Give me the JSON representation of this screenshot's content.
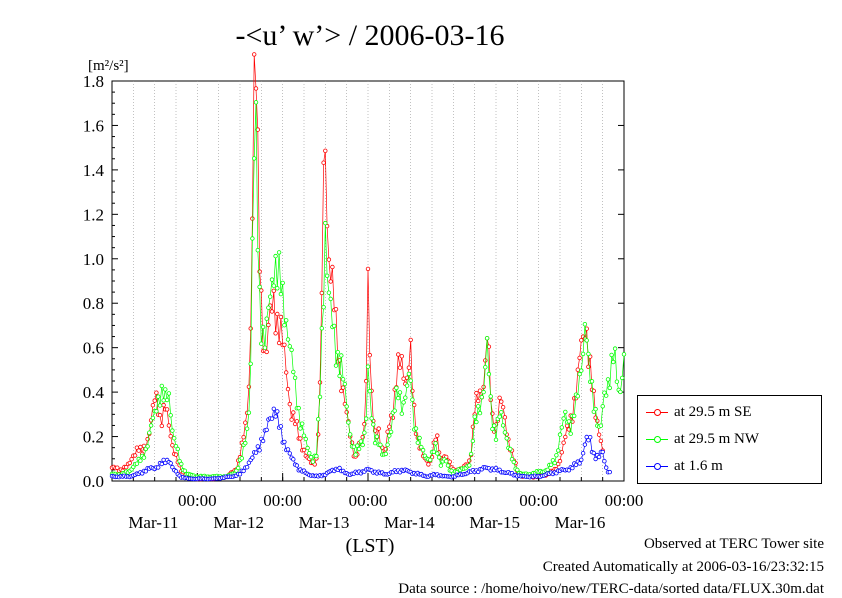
{
  "chart_data": {
    "type": "line",
    "title": "-<u’ w’> / 2006-03-16",
    "ylabel": "[m²/s²]",
    "xlabel": "(LST)",
    "ylim": [
      0,
      1.8
    ],
    "yticks": [
      "0.0",
      "0.2",
      "0.4",
      "0.6",
      "0.8",
      "1.0",
      "1.2",
      "1.4",
      "1.6",
      "1.8"
    ],
    "xlim_days": [
      0,
      6
    ],
    "xtick_time_label": "00:00",
    "xticks": [
      {
        "time": "00:00",
        "date": "Mar-11"
      },
      {
        "time": "00:00",
        "date": "Mar-12"
      },
      {
        "time": "00:00",
        "date": "Mar-13"
      },
      {
        "time": "00:00",
        "date": "Mar-14"
      },
      {
        "time": "00:00",
        "date": "Mar-15"
      },
      {
        "time": "00:00",
        "date": "Mar-16"
      }
    ],
    "grid": true,
    "legend_position": "right",
    "series": [
      {
        "name": "at 29.5 m SE",
        "color": "#ff0000",
        "keypoints": [
          [
            0.0,
            0.06
          ],
          [
            0.1,
            0.05
          ],
          [
            0.2,
            0.07
          ],
          [
            0.25,
            0.12
          ],
          [
            0.3,
            0.15
          ],
          [
            0.35,
            0.12
          ],
          [
            0.4,
            0.17
          ],
          [
            0.45,
            0.25
          ],
          [
            0.5,
            0.35
          ],
          [
            0.53,
            0.37
          ],
          [
            0.57,
            0.28
          ],
          [
            0.62,
            0.33
          ],
          [
            0.67,
            0.24
          ],
          [
            0.72,
            0.15
          ],
          [
            0.8,
            0.05
          ],
          [
            0.88,
            0.02
          ],
          [
            1.0,
            0.01
          ],
          [
            1.2,
            0.01
          ],
          [
            1.35,
            0.02
          ],
          [
            1.45,
            0.05
          ],
          [
            1.52,
            0.15
          ],
          [
            1.57,
            0.25
          ],
          [
            1.6,
            0.4
          ],
          [
            1.63,
            0.8
          ],
          [
            1.66,
            1.74
          ],
          [
            1.69,
            1.76
          ],
          [
            1.72,
            1.1
          ],
          [
            1.76,
            0.75
          ],
          [
            1.8,
            0.55
          ],
          [
            1.85,
            0.7
          ],
          [
            1.9,
            0.85
          ],
          [
            1.95,
            0.7
          ],
          [
            2.0,
            0.6
          ],
          [
            2.05,
            0.5
          ],
          [
            2.1,
            0.3
          ],
          [
            2.15,
            0.25
          ],
          [
            2.2,
            0.2
          ],
          [
            2.28,
            0.1
          ],
          [
            2.35,
            0.08
          ],
          [
            2.4,
            0.1
          ],
          [
            2.44,
            0.4
          ],
          [
            2.48,
            1.35
          ],
          [
            2.5,
            1.61
          ],
          [
            2.53,
            1.1
          ],
          [
            2.57,
            0.9
          ],
          [
            2.62,
            0.7
          ],
          [
            2.68,
            0.5
          ],
          [
            2.74,
            0.3
          ],
          [
            2.8,
            0.2
          ],
          [
            2.85,
            0.1
          ],
          [
            2.9,
            0.15
          ],
          [
            2.95,
            0.2
          ],
          [
            2.98,
            0.5
          ],
          [
            3.0,
            0.98
          ],
          [
            3.03,
            0.4
          ],
          [
            3.08,
            0.2
          ],
          [
            3.12,
            0.25
          ],
          [
            3.16,
            0.15
          ],
          [
            3.2,
            0.1
          ],
          [
            3.24,
            0.25
          ],
          [
            3.3,
            0.35
          ],
          [
            3.36,
            0.5
          ],
          [
            3.4,
            0.55
          ],
          [
            3.45,
            0.45
          ],
          [
            3.5,
            0.55
          ],
          [
            3.53,
            0.35
          ],
          [
            3.58,
            0.2
          ],
          [
            3.65,
            0.1
          ],
          [
            3.72,
            0.08
          ],
          [
            3.8,
            0.2
          ],
          [
            3.85,
            0.1
          ],
          [
            3.9,
            0.12
          ],
          [
            3.95,
            0.08
          ],
          [
            4.0,
            0.05
          ],
          [
            4.1,
            0.05
          ],
          [
            4.2,
            0.1
          ],
          [
            4.25,
            0.3
          ],
          [
            4.3,
            0.4
          ],
          [
            4.36,
            0.45
          ],
          [
            4.4,
            0.64
          ],
          [
            4.45,
            0.3
          ],
          [
            4.5,
            0.25
          ],
          [
            4.55,
            0.35
          ],
          [
            4.6,
            0.3
          ],
          [
            4.65,
            0.18
          ],
          [
            4.7,
            0.1
          ],
          [
            4.75,
            0.05
          ],
          [
            4.8,
            0.02
          ],
          [
            4.9,
            0.02
          ],
          [
            5.0,
            0.02
          ],
          [
            5.1,
            0.03
          ],
          [
            5.2,
            0.05
          ],
          [
            5.25,
            0.1
          ],
          [
            5.32,
            0.2
          ],
          [
            5.38,
            0.3
          ],
          [
            5.45,
            0.4
          ],
          [
            5.5,
            0.63
          ],
          [
            5.55,
            0.76
          ],
          [
            5.58,
            0.55
          ],
          [
            5.63,
            0.4
          ],
          [
            5.68,
            0.3
          ],
          [
            5.72,
            0.2
          ],
          [
            5.76,
            0.1
          ]
        ]
      },
      {
        "name": "at 29.5 m NW",
        "color": "#00ff00",
        "keypoints": [
          [
            0.0,
            0.03
          ],
          [
            0.1,
            0.03
          ],
          [
            0.2,
            0.04
          ],
          [
            0.25,
            0.07
          ],
          [
            0.3,
            0.08
          ],
          [
            0.35,
            0.1
          ],
          [
            0.4,
            0.15
          ],
          [
            0.45,
            0.22
          ],
          [
            0.5,
            0.3
          ],
          [
            0.53,
            0.38
          ],
          [
            0.57,
            0.4
          ],
          [
            0.62,
            0.35
          ],
          [
            0.67,
            0.4
          ],
          [
            0.72,
            0.2
          ],
          [
            0.8,
            0.08
          ],
          [
            0.88,
            0.03
          ],
          [
            1.0,
            0.02
          ],
          [
            1.2,
            0.02
          ],
          [
            1.35,
            0.02
          ],
          [
            1.45,
            0.04
          ],
          [
            1.52,
            0.1
          ],
          [
            1.57,
            0.2
          ],
          [
            1.6,
            0.3
          ],
          [
            1.63,
            0.6
          ],
          [
            1.66,
            1.38
          ],
          [
            1.69,
            1.5
          ],
          [
            1.72,
            0.9
          ],
          [
            1.76,
            0.7
          ],
          [
            1.8,
            0.6
          ],
          [
            1.85,
            0.8
          ],
          [
            1.9,
            1.05
          ],
          [
            1.95,
            0.9
          ],
          [
            2.0,
            0.8
          ],
          [
            2.05,
            0.75
          ],
          [
            2.1,
            0.55
          ],
          [
            2.15,
            0.4
          ],
          [
            2.2,
            0.3
          ],
          [
            2.28,
            0.15
          ],
          [
            2.35,
            0.1
          ],
          [
            2.4,
            0.12
          ],
          [
            2.44,
            0.4
          ],
          [
            2.48,
            0.9
          ],
          [
            2.5,
            1.22
          ],
          [
            2.53,
            0.9
          ],
          [
            2.57,
            0.7
          ],
          [
            2.62,
            0.6
          ],
          [
            2.68,
            0.55
          ],
          [
            2.74,
            0.35
          ],
          [
            2.8,
            0.2
          ],
          [
            2.85,
            0.12
          ],
          [
            2.9,
            0.15
          ],
          [
            2.95,
            0.2
          ],
          [
            2.98,
            0.3
          ],
          [
            3.0,
            0.5
          ],
          [
            3.03,
            0.3
          ],
          [
            3.08,
            0.2
          ],
          [
            3.12,
            0.2
          ],
          [
            3.16,
            0.12
          ],
          [
            3.2,
            0.1
          ],
          [
            3.24,
            0.2
          ],
          [
            3.3,
            0.3
          ],
          [
            3.36,
            0.4
          ],
          [
            3.4,
            0.35
          ],
          [
            3.45,
            0.4
          ],
          [
            3.5,
            0.45
          ],
          [
            3.53,
            0.3
          ],
          [
            3.58,
            0.2
          ],
          [
            3.65,
            0.12
          ],
          [
            3.72,
            0.1
          ],
          [
            3.8,
            0.15
          ],
          [
            3.85,
            0.08
          ],
          [
            3.9,
            0.1
          ],
          [
            3.95,
            0.05
          ],
          [
            4.0,
            0.04
          ],
          [
            4.1,
            0.05
          ],
          [
            4.2,
            0.08
          ],
          [
            4.25,
            0.25
          ],
          [
            4.3,
            0.35
          ],
          [
            4.36,
            0.4
          ],
          [
            4.4,
            0.6
          ],
          [
            4.45,
            0.3
          ],
          [
            4.5,
            0.2
          ],
          [
            4.55,
            0.3
          ],
          [
            4.6,
            0.25
          ],
          [
            4.65,
            0.15
          ],
          [
            4.7,
            0.08
          ],
          [
            4.75,
            0.05
          ],
          [
            4.8,
            0.03
          ],
          [
            4.9,
            0.03
          ],
          [
            5.0,
            0.04
          ],
          [
            5.1,
            0.05
          ],
          [
            5.2,
            0.1
          ],
          [
            5.25,
            0.2
          ],
          [
            5.32,
            0.3
          ],
          [
            5.38,
            0.25
          ],
          [
            5.45,
            0.35
          ],
          [
            5.5,
            0.55
          ],
          [
            5.55,
            0.74
          ],
          [
            5.58,
            0.5
          ],
          [
            5.63,
            0.4
          ],
          [
            5.68,
            0.3
          ],
          [
            5.72,
            0.2
          ],
          [
            5.76,
            0.35
          ],
          [
            5.8,
            0.45
          ],
          [
            5.84,
            0.5
          ],
          [
            5.88,
            0.55
          ],
          [
            5.94,
            0.4
          ],
          [
            6.0,
            0.56
          ]
        ]
      },
      {
        "name": "at 1.6 m",
        "color": "#0000ff",
        "keypoints": [
          [
            0.0,
            0.02
          ],
          [
            0.1,
            0.02
          ],
          [
            0.2,
            0.02
          ],
          [
            0.3,
            0.03
          ],
          [
            0.4,
            0.05
          ],
          [
            0.5,
            0.06
          ],
          [
            0.6,
            0.08
          ],
          [
            0.67,
            0.1
          ],
          [
            0.72,
            0.05
          ],
          [
            0.8,
            0.02
          ],
          [
            0.9,
            0.01
          ],
          [
            1.0,
            0.01
          ],
          [
            1.2,
            0.01
          ],
          [
            1.4,
            0.02
          ],
          [
            1.5,
            0.03
          ],
          [
            1.6,
            0.08
          ],
          [
            1.65,
            0.1
          ],
          [
            1.7,
            0.15
          ],
          [
            1.75,
            0.18
          ],
          [
            1.8,
            0.2
          ],
          [
            1.85,
            0.3
          ],
          [
            1.9,
            0.33
          ],
          [
            1.95,
            0.25
          ],
          [
            2.0,
            0.2
          ],
          [
            2.05,
            0.15
          ],
          [
            2.1,
            0.1
          ],
          [
            2.15,
            0.08
          ],
          [
            2.2,
            0.05
          ],
          [
            2.3,
            0.03
          ],
          [
            2.4,
            0.02
          ],
          [
            2.5,
            0.03
          ],
          [
            2.6,
            0.05
          ],
          [
            2.65,
            0.06
          ],
          [
            2.7,
            0.04
          ],
          [
            2.8,
            0.03
          ],
          [
            2.9,
            0.04
          ],
          [
            3.0,
            0.05
          ],
          [
            3.1,
            0.04
          ],
          [
            3.2,
            0.03
          ],
          [
            3.3,
            0.04
          ],
          [
            3.4,
            0.05
          ],
          [
            3.5,
            0.04
          ],
          [
            3.6,
            0.03
          ],
          [
            3.7,
            0.02
          ],
          [
            3.8,
            0.03
          ],
          [
            3.9,
            0.02
          ],
          [
            4.0,
            0.02
          ],
          [
            4.1,
            0.03
          ],
          [
            4.2,
            0.04
          ],
          [
            4.3,
            0.05
          ],
          [
            4.4,
            0.06
          ],
          [
            4.5,
            0.05
          ],
          [
            4.6,
            0.04
          ],
          [
            4.7,
            0.03
          ],
          [
            4.8,
            0.02
          ],
          [
            4.9,
            0.02
          ],
          [
            5.0,
            0.02
          ],
          [
            5.1,
            0.03
          ],
          [
            5.2,
            0.04
          ],
          [
            5.3,
            0.05
          ],
          [
            5.4,
            0.06
          ],
          [
            5.5,
            0.1
          ],
          [
            5.55,
            0.17
          ],
          [
            5.6,
            0.19
          ],
          [
            5.65,
            0.12
          ],
          [
            5.7,
            0.1
          ],
          [
            5.75,
            0.13
          ],
          [
            5.8,
            0.05
          ],
          [
            5.85,
            0.03
          ]
        ]
      }
    ]
  },
  "footer": {
    "observed": "Observed at TERC Tower site",
    "created": "Created Automatically at 2006-03-16/23:32:15",
    "source": "Data source : /home/hoivo/new/TERC-data/sorted  data/FLUX.30m.dat"
  }
}
